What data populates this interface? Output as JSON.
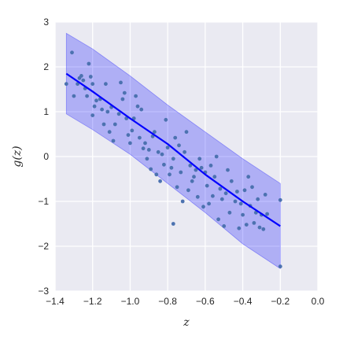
{
  "chart_data": {
    "type": "scatter",
    "title": "",
    "xlabel": "z",
    "ylabel": "g(z)",
    "xlim": [
      -1.4,
      0.0
    ],
    "ylim": [
      -3,
      3
    ],
    "xticks": [
      -1.4,
      -1.2,
      -1.0,
      -0.8,
      -0.6,
      -0.4,
      -0.2,
      0.0
    ],
    "xtick_labels": [
      "−1.4",
      "−1.2",
      "−1.0",
      "−0.8",
      "−0.6",
      "−0.4",
      "−0.2",
      "0.0"
    ],
    "yticks": [
      -3,
      -2,
      -1,
      0,
      1,
      2,
      3
    ],
    "ytick_labels": [
      "−3",
      "−2",
      "−1",
      "0",
      "1",
      "2",
      "3"
    ],
    "grid": true,
    "colors": {
      "background": "#eaeaf2",
      "grid": "#ffffff",
      "points": "#4c72b0",
      "fit_line": "#0000ff",
      "band": "#0000ff"
    },
    "fit_line": {
      "x": [
        -1.34,
        -1.2,
        -1.0,
        -0.8,
        -0.6,
        -0.4,
        -0.2
      ],
      "y": [
        1.85,
        1.45,
        0.85,
        0.28,
        -0.4,
        -1.0,
        -1.55
      ]
    },
    "band": {
      "x": [
        -1.34,
        -1.2,
        -1.0,
        -0.8,
        -0.6,
        -0.4,
        -0.2
      ],
      "upper": [
        2.75,
        2.4,
        1.8,
        1.15,
        0.55,
        -0.05,
        -0.6
      ],
      "lower": [
        0.95,
        0.6,
        0.05,
        -0.6,
        -1.25,
        -1.95,
        -2.5
      ]
    },
    "series": [
      {
        "points": [
          [
            -1.34,
            1.62
          ],
          [
            -1.31,
            2.32
          ],
          [
            -1.3,
            1.35
          ],
          [
            -1.28,
            1.62
          ],
          [
            -1.27,
            1.75
          ],
          [
            -1.26,
            1.8
          ],
          [
            -1.25,
            1.7
          ],
          [
            -1.24,
            1.52
          ],
          [
            -1.23,
            1.35
          ],
          [
            -1.22,
            2.07
          ],
          [
            -1.21,
            1.78
          ],
          [
            -1.2,
            0.92
          ],
          [
            -1.2,
            1.62
          ],
          [
            -1.19,
            1.12
          ],
          [
            -1.18,
            1.25
          ],
          [
            -1.16,
            1.28
          ],
          [
            -1.15,
            1.05
          ],
          [
            -1.14,
            0.72
          ],
          [
            -1.13,
            1.62
          ],
          [
            -1.12,
            1.0
          ],
          [
            -1.11,
            0.55
          ],
          [
            -1.1,
            1.1
          ],
          [
            -1.09,
            0.35
          ],
          [
            -1.08,
            0.72
          ],
          [
            -1.06,
            0.95
          ],
          [
            -1.05,
            1.65
          ],
          [
            -1.04,
            1.28
          ],
          [
            -1.03,
            1.42
          ],
          [
            -1.02,
            0.85
          ],
          [
            -1.01,
            0.48
          ],
          [
            -1.0,
            0.3
          ],
          [
            -0.99,
            0.58
          ],
          [
            -0.98,
            0.85
          ],
          [
            -0.97,
            1.35
          ],
          [
            -0.96,
            1.12
          ],
          [
            -0.95,
            0.42
          ],
          [
            -0.94,
            1.05
          ],
          [
            -0.93,
            0.18
          ],
          [
            -0.92,
            0.3
          ],
          [
            -0.91,
            -0.05
          ],
          [
            -0.9,
            0.15
          ],
          [
            -0.89,
            -0.28
          ],
          [
            -0.88,
            0.45
          ],
          [
            -0.87,
            0.55
          ],
          [
            -0.86,
            -0.4
          ],
          [
            -0.85,
            0.1
          ],
          [
            -0.84,
            -0.55
          ],
          [
            -0.83,
            0.05
          ],
          [
            -0.82,
            -0.18
          ],
          [
            -0.81,
            0.82
          ],
          [
            -0.8,
            0.2
          ],
          [
            -0.79,
            -0.4
          ],
          [
            -0.78,
            -0.25
          ],
          [
            -0.77,
            -0.05
          ],
          [
            -0.77,
            -1.5
          ],
          [
            -0.76,
            0.42
          ],
          [
            -0.75,
            -0.68
          ],
          [
            -0.74,
            0.25
          ],
          [
            -0.73,
            -0.35
          ],
          [
            -0.72,
            -1.0
          ],
          [
            -0.71,
            0.1
          ],
          [
            -0.7,
            0.55
          ],
          [
            -0.69,
            -0.75
          ],
          [
            -0.68,
            -0.2
          ],
          [
            -0.67,
            -0.55
          ],
          [
            -0.66,
            -0.45
          ],
          [
            -0.65,
            -0.3
          ],
          [
            -0.64,
            -0.9
          ],
          [
            -0.63,
            -0.05
          ],
          [
            -0.62,
            -0.25
          ],
          [
            -0.61,
            -1.12
          ],
          [
            -0.6,
            -0.35
          ],
          [
            -0.59,
            -0.65
          ],
          [
            -0.58,
            -1.05
          ],
          [
            -0.57,
            -0.2
          ],
          [
            -0.56,
            -0.88
          ],
          [
            -0.55,
            -0.45
          ],
          [
            -0.54,
            0.0
          ],
          [
            -0.53,
            -1.4
          ],
          [
            -0.52,
            -0.72
          ],
          [
            -0.51,
            -0.95
          ],
          [
            -0.5,
            -1.55
          ],
          [
            -0.49,
            -0.82
          ],
          [
            -0.48,
            -0.3
          ],
          [
            -0.47,
            -1.25
          ],
          [
            -0.46,
            -0.55
          ],
          [
            -0.44,
            -1.0
          ],
          [
            -0.43,
            -0.78
          ],
          [
            -0.42,
            -1.6
          ],
          [
            -0.41,
            -1.05
          ],
          [
            -0.4,
            -1.3
          ],
          [
            -0.39,
            -0.75
          ],
          [
            -0.38,
            -1.52
          ],
          [
            -0.37,
            -0.45
          ],
          [
            -0.36,
            -1.1
          ],
          [
            -0.35,
            -0.68
          ],
          [
            -0.34,
            -1.48
          ],
          [
            -0.33,
            -1.25
          ],
          [
            -0.32,
            -0.95
          ],
          [
            -0.31,
            -1.58
          ],
          [
            -0.3,
            -1.3
          ],
          [
            -0.29,
            -1.62
          ],
          [
            -0.28,
            -0.85
          ],
          [
            -0.27,
            -1.28
          ],
          [
            -0.2,
            -0.97
          ],
          [
            -0.2,
            -2.45
          ]
        ]
      }
    ]
  }
}
